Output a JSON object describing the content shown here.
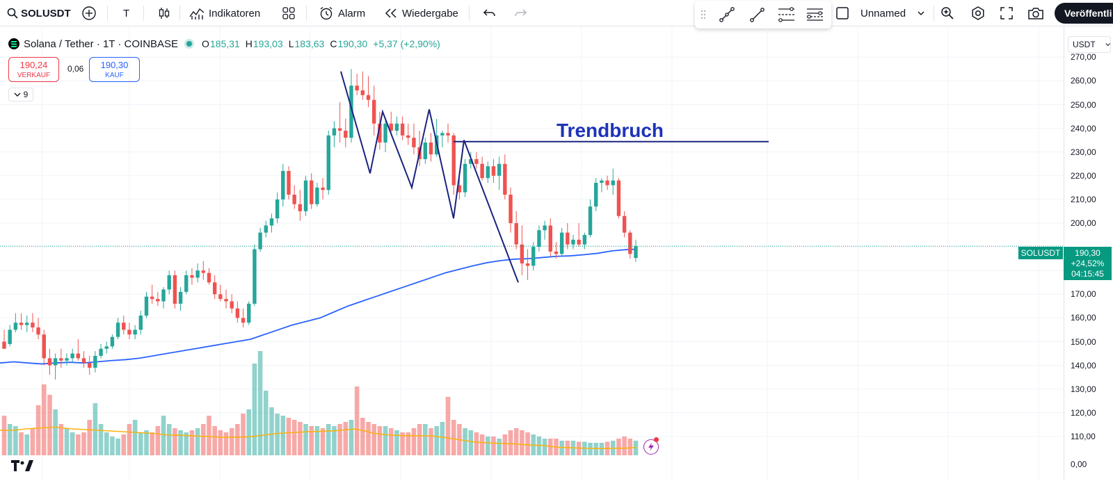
{
  "toolbar": {
    "symbol": "SOLUSDT",
    "interval": "T",
    "indicators_label": "Indikatoren",
    "alert_label": "Alarm",
    "replay_label": "Wiedergabe",
    "layout_name": "Unnamed",
    "publish_label": "Veröffentli"
  },
  "legend": {
    "title": "Solana / Tether · 1T · COINBASE",
    "open_label": "O",
    "open": "185,31",
    "high_label": "H",
    "high": "193,03",
    "low_label": "L",
    "low": "183,63",
    "close_label": "C",
    "close": "190,30",
    "change": "+5,37 (+2,90%)"
  },
  "trade": {
    "sell_price": "190,24",
    "sell_label": "VERKAUF",
    "spread": "0,06",
    "buy_price": "190,30",
    "buy_label": "KAUF"
  },
  "collapse_count": "9",
  "annotation": {
    "text": "Trendbruch"
  },
  "price_axis": {
    "currency": "USDT",
    "ticks": [
      "270,00",
      "260,00",
      "250,00",
      "240,00",
      "230,00",
      "220,00",
      "210,00",
      "200,00",
      "170,00",
      "160,00",
      "150,00",
      "140,00",
      "130,00",
      "120,00",
      "110,00",
      "0,00"
    ],
    "symbol_tag": "SOLUSDT",
    "last_price": "190,30",
    "last_change": "+24,52%",
    "countdown": "04:15:45"
  },
  "colors": {
    "up": "#26a69a",
    "down": "#ef5350",
    "ma_long": "#2962ff",
    "volume_ma": "#f9b310",
    "drawing": "#1a237e",
    "annotation": "#1e33b8"
  },
  "chart_data": {
    "type": "candlestick",
    "symbol": "SOLUSDT",
    "ylim": [
      130,
      272
    ],
    "candles": [
      {
        "o": 150,
        "h": 155,
        "l": 147,
        "c": 147
      },
      {
        "o": 149,
        "h": 157,
        "l": 148,
        "c": 155
      },
      {
        "o": 155,
        "h": 162,
        "l": 154,
        "c": 158
      },
      {
        "o": 158,
        "h": 162,
        "l": 155,
        "c": 157
      },
      {
        "o": 157,
        "h": 161,
        "l": 154,
        "c": 158
      },
      {
        "o": 158,
        "h": 162,
        "l": 154,
        "c": 156
      },
      {
        "o": 156,
        "h": 160,
        "l": 151,
        "c": 153
      },
      {
        "o": 153,
        "h": 155,
        "l": 140,
        "c": 143
      },
      {
        "o": 143,
        "h": 147,
        "l": 136,
        "c": 140
      },
      {
        "o": 140,
        "h": 145,
        "l": 134,
        "c": 143
      },
      {
        "o": 143,
        "h": 147,
        "l": 139,
        "c": 142
      },
      {
        "o": 142,
        "h": 145,
        "l": 140,
        "c": 143
      },
      {
        "o": 143,
        "h": 147,
        "l": 141,
        "c": 145
      },
      {
        "o": 145,
        "h": 151,
        "l": 142,
        "c": 143
      },
      {
        "o": 143,
        "h": 146,
        "l": 139,
        "c": 141
      },
      {
        "o": 141,
        "h": 144,
        "l": 136,
        "c": 139
      },
      {
        "o": 139,
        "h": 146,
        "l": 137,
        "c": 144
      },
      {
        "o": 144,
        "h": 149,
        "l": 143,
        "c": 147
      },
      {
        "o": 147,
        "h": 150,
        "l": 145,
        "c": 148
      },
      {
        "o": 148,
        "h": 153,
        "l": 147,
        "c": 152
      },
      {
        "o": 152,
        "h": 160,
        "l": 151,
        "c": 158
      },
      {
        "o": 158,
        "h": 161,
        "l": 153,
        "c": 155
      },
      {
        "o": 155,
        "h": 158,
        "l": 151,
        "c": 153
      },
      {
        "o": 153,
        "h": 157,
        "l": 151,
        "c": 155
      },
      {
        "o": 155,
        "h": 163,
        "l": 153,
        "c": 161
      },
      {
        "o": 161,
        "h": 171,
        "l": 160,
        "c": 169
      },
      {
        "o": 169,
        "h": 174,
        "l": 166,
        "c": 168
      },
      {
        "o": 168,
        "h": 171,
        "l": 165,
        "c": 167
      },
      {
        "o": 167,
        "h": 173,
        "l": 164,
        "c": 172
      },
      {
        "o": 172,
        "h": 180,
        "l": 170,
        "c": 178
      },
      {
        "o": 178,
        "h": 180,
        "l": 164,
        "c": 166
      },
      {
        "o": 166,
        "h": 173,
        "l": 163,
        "c": 171
      },
      {
        "o": 171,
        "h": 180,
        "l": 170,
        "c": 178
      },
      {
        "o": 178,
        "h": 181,
        "l": 174,
        "c": 177
      },
      {
        "o": 177,
        "h": 183,
        "l": 175,
        "c": 180
      },
      {
        "o": 180,
        "h": 184,
        "l": 176,
        "c": 179
      },
      {
        "o": 179,
        "h": 181,
        "l": 174,
        "c": 175
      },
      {
        "o": 175,
        "h": 178,
        "l": 168,
        "c": 170
      },
      {
        "o": 170,
        "h": 174,
        "l": 167,
        "c": 168
      },
      {
        "o": 168,
        "h": 172,
        "l": 164,
        "c": 167
      },
      {
        "o": 167,
        "h": 170,
        "l": 162,
        "c": 164
      },
      {
        "o": 164,
        "h": 167,
        "l": 158,
        "c": 160
      },
      {
        "o": 160,
        "h": 164,
        "l": 156,
        "c": 158
      },
      {
        "o": 158,
        "h": 167,
        "l": 157,
        "c": 166
      },
      {
        "o": 166,
        "h": 191,
        "l": 165,
        "c": 189
      },
      {
        "o": 189,
        "h": 198,
        "l": 188,
        "c": 196
      },
      {
        "o": 196,
        "h": 201,
        "l": 194,
        "c": 199
      },
      {
        "o": 199,
        "h": 204,
        "l": 196,
        "c": 202
      },
      {
        "o": 202,
        "h": 213,
        "l": 200,
        "c": 210
      },
      {
        "o": 210,
        "h": 225,
        "l": 207,
        "c": 222
      },
      {
        "o": 222,
        "h": 224,
        "l": 210,
        "c": 212
      },
      {
        "o": 212,
        "h": 216,
        "l": 206,
        "c": 208
      },
      {
        "o": 208,
        "h": 214,
        "l": 201,
        "c": 205
      },
      {
        "o": 205,
        "h": 220,
        "l": 203,
        "c": 218
      },
      {
        "o": 218,
        "h": 221,
        "l": 206,
        "c": 208
      },
      {
        "o": 208,
        "h": 217,
        "l": 207,
        "c": 215
      },
      {
        "o": 215,
        "h": 219,
        "l": 210,
        "c": 214
      },
      {
        "o": 214,
        "h": 239,
        "l": 212,
        "c": 237
      },
      {
        "o": 237,
        "h": 243,
        "l": 232,
        "c": 240
      },
      {
        "o": 240,
        "h": 251,
        "l": 234,
        "c": 239
      },
      {
        "o": 239,
        "h": 244,
        "l": 232,
        "c": 236
      },
      {
        "o": 236,
        "h": 265,
        "l": 234,
        "c": 258
      },
      {
        "o": 258,
        "h": 263,
        "l": 254,
        "c": 256
      },
      {
        "o": 256,
        "h": 264,
        "l": 252,
        "c": 254
      },
      {
        "o": 254,
        "h": 262,
        "l": 249,
        "c": 252
      },
      {
        "o": 252,
        "h": 258,
        "l": 237,
        "c": 242
      },
      {
        "o": 242,
        "h": 247,
        "l": 231,
        "c": 234
      },
      {
        "o": 234,
        "h": 244,
        "l": 230,
        "c": 242
      },
      {
        "o": 242,
        "h": 247,
        "l": 237,
        "c": 239
      },
      {
        "o": 239,
        "h": 245,
        "l": 237,
        "c": 242
      },
      {
        "o": 242,
        "h": 245,
        "l": 235,
        "c": 237
      },
      {
        "o": 237,
        "h": 242,
        "l": 233,
        "c": 236
      },
      {
        "o": 236,
        "h": 242,
        "l": 229,
        "c": 232
      },
      {
        "o": 232,
        "h": 239,
        "l": 224,
        "c": 227
      },
      {
        "o": 227,
        "h": 236,
        "l": 225,
        "c": 234
      },
      {
        "o": 234,
        "h": 238,
        "l": 226,
        "c": 229
      },
      {
        "o": 229,
        "h": 244,
        "l": 228,
        "c": 237
      },
      {
        "o": 237,
        "h": 239,
        "l": 232,
        "c": 238
      },
      {
        "o": 238,
        "h": 242,
        "l": 234,
        "c": 237
      },
      {
        "o": 237,
        "h": 238,
        "l": 212,
        "c": 216
      },
      {
        "o": 216,
        "h": 222,
        "l": 210,
        "c": 213
      },
      {
        "o": 213,
        "h": 227,
        "l": 211,
        "c": 225
      },
      {
        "o": 225,
        "h": 230,
        "l": 223,
        "c": 227
      },
      {
        "o": 227,
        "h": 230,
        "l": 223,
        "c": 225
      },
      {
        "o": 225,
        "h": 228,
        "l": 218,
        "c": 219
      },
      {
        "o": 219,
        "h": 226,
        "l": 217,
        "c": 224
      },
      {
        "o": 224,
        "h": 227,
        "l": 217,
        "c": 220
      },
      {
        "o": 220,
        "h": 228,
        "l": 214,
        "c": 225
      },
      {
        "o": 225,
        "h": 229,
        "l": 210,
        "c": 212
      },
      {
        "o": 212,
        "h": 215,
        "l": 196,
        "c": 200
      },
      {
        "o": 200,
        "h": 205,
        "l": 189,
        "c": 191
      },
      {
        "o": 191,
        "h": 199,
        "l": 178,
        "c": 183
      },
      {
        "o": 183,
        "h": 189,
        "l": 176,
        "c": 182
      },
      {
        "o": 182,
        "h": 192,
        "l": 180,
        "c": 190
      },
      {
        "o": 190,
        "h": 199,
        "l": 188,
        "c": 197
      },
      {
        "o": 197,
        "h": 201,
        "l": 193,
        "c": 199
      },
      {
        "o": 199,
        "h": 202,
        "l": 186,
        "c": 188
      },
      {
        "o": 188,
        "h": 192,
        "l": 185,
        "c": 187
      },
      {
        "o": 187,
        "h": 198,
        "l": 186,
        "c": 196
      },
      {
        "o": 196,
        "h": 200,
        "l": 189,
        "c": 191
      },
      {
        "o": 191,
        "h": 195,
        "l": 189,
        "c": 193
      },
      {
        "o": 193,
        "h": 200,
        "l": 190,
        "c": 191
      },
      {
        "o": 191,
        "h": 196,
        "l": 189,
        "c": 195
      },
      {
        "o": 195,
        "h": 210,
        "l": 194,
        "c": 207
      },
      {
        "o": 207,
        "h": 219,
        "l": 205,
        "c": 217
      },
      {
        "o": 217,
        "h": 219,
        "l": 213,
        "c": 218
      },
      {
        "o": 218,
        "h": 220,
        "l": 214,
        "c": 216
      },
      {
        "o": 216,
        "h": 223,
        "l": 212,
        "c": 218
      },
      {
        "o": 218,
        "h": 219,
        "l": 202,
        "c": 203
      },
      {
        "o": 203,
        "h": 205,
        "l": 194,
        "c": 196
      },
      {
        "o": 196,
        "h": 197,
        "l": 185,
        "c": 187
      },
      {
        "o": 185.31,
        "h": 193.03,
        "l": 183.63,
        "c": 190.3
      }
    ],
    "volume": [
      38,
      30,
      28,
      22,
      20,
      26,
      48,
      68,
      58,
      44,
      30,
      26,
      22,
      20,
      22,
      34,
      50,
      30,
      22,
      18,
      16,
      20,
      30,
      34,
      22,
      24,
      22,
      28,
      38,
      30,
      26,
      24,
      22,
      24,
      26,
      30,
      38,
      28,
      24,
      22,
      26,
      30,
      40,
      44,
      88,
      100,
      62,
      46,
      40,
      38,
      36,
      34,
      32,
      30,
      28,
      28,
      26,
      30,
      28,
      30,
      32,
      34,
      66,
      36,
      32,
      30,
      28,
      28,
      26,
      24,
      22,
      22,
      26,
      30,
      30,
      26,
      28,
      32,
      56,
      34,
      30,
      26,
      24,
      22,
      20,
      18,
      18,
      16,
      20,
      24,
      26,
      24,
      22,
      20,
      18,
      16,
      16,
      16,
      14,
      14,
      14,
      13,
      13,
      12,
      12,
      12,
      13,
      14,
      16,
      18,
      16,
      14
    ],
    "ma_long_points": [
      [
        0,
        141
      ],
      [
        20,
        141.5
      ],
      [
        40,
        141
      ],
      [
        60,
        140.6
      ],
      [
        80,
        141
      ],
      [
        100,
        141.3
      ],
      [
        120,
        141
      ],
      [
        140,
        141.5
      ],
      [
        160,
        142
      ],
      [
        180,
        142.4
      ],
      [
        200,
        143
      ],
      [
        220,
        144
      ],
      [
        240,
        145
      ],
      [
        260,
        146
      ],
      [
        280,
        147
      ],
      [
        300,
        148
      ],
      [
        320,
        149
      ],
      [
        340,
        150
      ],
      [
        360,
        151
      ],
      [
        380,
        153
      ],
      [
        400,
        155
      ],
      [
        420,
        157
      ],
      [
        440,
        158.5
      ],
      [
        460,
        160
      ],
      [
        480,
        162.5
      ],
      [
        500,
        165
      ],
      [
        520,
        167
      ],
      [
        540,
        169
      ],
      [
        560,
        171
      ],
      [
        580,
        173
      ],
      [
        600,
        175
      ],
      [
        620,
        177
      ],
      [
        640,
        179
      ],
      [
        660,
        180.5
      ],
      [
        680,
        182
      ],
      [
        700,
        183.3
      ],
      [
        720,
        184.2
      ],
      [
        740,
        184.8
      ],
      [
        760,
        185
      ],
      [
        780,
        185.5
      ],
      [
        800,
        186
      ],
      [
        820,
        186.2
      ],
      [
        840,
        186.7
      ],
      [
        860,
        187.3
      ],
      [
        880,
        188.3
      ],
      [
        900,
        188.8
      ],
      [
        915,
        189
      ]
    ],
    "vol_ma_points": [
      [
        0,
        16
      ],
      [
        20,
        16
      ],
      [
        40,
        17
      ],
      [
        60,
        17.5
      ],
      [
        80,
        18
      ],
      [
        100,
        17
      ],
      [
        120,
        16.5
      ],
      [
        140,
        16
      ],
      [
        160,
        15.5
      ],
      [
        180,
        15
      ],
      [
        200,
        14.5
      ],
      [
        220,
        14
      ],
      [
        240,
        13
      ],
      [
        260,
        12.8
      ],
      [
        280,
        12.3
      ],
      [
        300,
        12
      ],
      [
        320,
        11.5
      ],
      [
        340,
        11.6
      ],
      [
        360,
        11.8
      ],
      [
        380,
        13
      ],
      [
        400,
        14
      ],
      [
        420,
        14.5
      ],
      [
        440,
        15
      ],
      [
        460,
        15.3
      ],
      [
        480,
        15.6
      ],
      [
        500,
        16.5
      ],
      [
        510,
        16.8
      ],
      [
        520,
        16
      ],
      [
        540,
        13.8
      ],
      [
        560,
        13
      ],
      [
        580,
        12.6
      ],
      [
        600,
        12.4
      ],
      [
        620,
        12.4
      ],
      [
        640,
        11.3
      ],
      [
        660,
        10
      ],
      [
        680,
        8.6
      ],
      [
        700,
        8
      ],
      [
        720,
        7.5
      ],
      [
        740,
        7.3
      ],
      [
        760,
        6.6
      ],
      [
        780,
        6.3
      ],
      [
        800,
        5.2
      ],
      [
        820,
        4.8
      ],
      [
        840,
        4.5
      ],
      [
        860,
        4.3
      ],
      [
        880,
        4.4
      ],
      [
        900,
        4.6
      ],
      [
        915,
        5
      ]
    ],
    "zigzag_points": [
      [
        490,
        264
      ],
      [
        532,
        221
      ],
      [
        550,
        247
      ],
      [
        592,
        215
      ],
      [
        617,
        248
      ],
      [
        652,
        202
      ],
      [
        667,
        235
      ],
      [
        745,
        175
      ]
    ],
    "trendline": {
      "from": [
        652,
        234.4
      ],
      "to": [
        1105,
        234.4
      ]
    },
    "current_price": 190.3
  }
}
